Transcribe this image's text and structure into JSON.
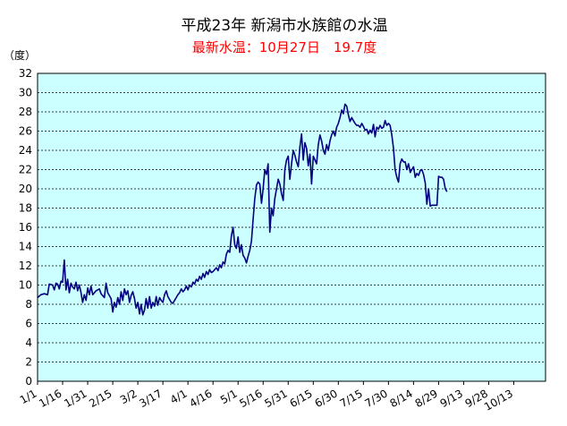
{
  "chart_data": {
    "type": "line",
    "title": "平成23年 新潟市水族館の水温",
    "subtitle": "最新水温：10月27日　19.7度",
    "ylabel": "（度）",
    "xlabel": "",
    "ylim": [
      0,
      32
    ],
    "yticks": [
      0,
      2,
      4,
      6,
      8,
      10,
      12,
      14,
      16,
      18,
      20,
      22,
      24,
      26,
      28,
      30,
      32
    ],
    "x_tick_labels": [
      "1/1",
      "1/16",
      "1/31",
      "2/15",
      "3/2",
      "3/17",
      "4/1",
      "4/16",
      "5/1",
      "5/16",
      "5/31",
      "6/15",
      "6/30",
      "7/15",
      "7/30",
      "8/14",
      "8/29",
      "9/13",
      "9/28",
      "10/13"
    ],
    "x_range_days": [
      0,
      304
    ],
    "grid": "horizontal",
    "colors": {
      "plot_background": "#ccffff",
      "line": "#000080",
      "title": "#000000",
      "subtitle": "#ff0000"
    },
    "series": [
      {
        "points": [
          [
            0,
            8.7
          ],
          [
            2,
            9.0
          ],
          [
            4,
            9.1
          ],
          [
            6,
            9.0
          ],
          [
            7,
            10.1
          ],
          [
            9,
            10.0
          ],
          [
            10,
            9.5
          ],
          [
            11,
            10.2
          ],
          [
            12,
            10.1
          ],
          [
            13,
            9.6
          ],
          [
            14,
            10.4
          ],
          [
            15,
            10.3
          ],
          [
            16,
            12.6
          ],
          [
            17,
            9.5
          ],
          [
            18,
            10.6
          ],
          [
            19,
            9.2
          ],
          [
            20,
            10.2
          ],
          [
            21,
            9.8
          ],
          [
            22,
            9.6
          ],
          [
            23,
            10.3
          ],
          [
            24,
            9.4
          ],
          [
            25,
            10.0
          ],
          [
            26,
            9.2
          ],
          [
            27,
            8.2
          ],
          [
            28,
            9.0
          ],
          [
            29,
            8.4
          ],
          [
            30,
            9.7
          ],
          [
            31,
            9.0
          ],
          [
            32,
            9.9
          ],
          [
            33,
            9.0
          ],
          [
            35,
            9.4
          ],
          [
            37,
            9.6
          ],
          [
            38,
            9.1
          ],
          [
            40,
            8.7
          ],
          [
            41,
            10.2
          ],
          [
            42,
            9.2
          ],
          [
            44,
            8.6
          ],
          [
            45,
            7.2
          ],
          [
            46,
            8.2
          ],
          [
            47,
            7.7
          ],
          [
            48,
            8.7
          ],
          [
            49,
            8.0
          ],
          [
            50,
            9.3
          ],
          [
            51,
            8.4
          ],
          [
            52,
            9.6
          ],
          [
            53,
            9.0
          ],
          [
            54,
            9.4
          ],
          [
            55,
            8.2
          ],
          [
            56,
            8.9
          ],
          [
            57,
            9.3
          ],
          [
            58,
            8.6
          ],
          [
            59,
            7.6
          ],
          [
            60,
            8.2
          ],
          [
            61,
            7.0
          ],
          [
            62,
            8.0
          ],
          [
            63,
            6.9
          ],
          [
            64,
            7.4
          ],
          [
            65,
            8.6
          ],
          [
            66,
            7.6
          ],
          [
            67,
            8.8
          ],
          [
            68,
            7.6
          ],
          [
            69,
            8.2
          ],
          [
            70,
            7.8
          ],
          [
            71,
            8.8
          ],
          [
            72,
            7.9
          ],
          [
            73,
            8.7
          ],
          [
            74,
            8.4
          ],
          [
            75,
            8.2
          ],
          [
            76,
            9.0
          ],
          [
            77,
            9.4
          ],
          [
            78,
            8.8
          ],
          [
            79,
            8.5
          ],
          [
            80,
            8.2
          ],
          [
            81,
            8.1
          ],
          [
            82,
            8.4
          ],
          [
            83,
            8.7
          ],
          [
            84,
            9.0
          ],
          [
            85,
            9.2
          ],
          [
            86,
            9.6
          ],
          [
            87,
            9.3
          ],
          [
            88,
            9.5
          ],
          [
            89,
            9.9
          ],
          [
            90,
            9.5
          ],
          [
            91,
            10.0
          ],
          [
            92,
            9.8
          ],
          [
            93,
            10.3
          ],
          [
            94,
            10.1
          ],
          [
            95,
            10.6
          ],
          [
            96,
            10.4
          ],
          [
            97,
            10.9
          ],
          [
            98,
            10.6
          ],
          [
            99,
            11.2
          ],
          [
            100,
            10.8
          ],
          [
            101,
            11.4
          ],
          [
            102,
            11.1
          ],
          [
            103,
            11.6
          ],
          [
            104,
            11.3
          ],
          [
            105,
            11.4
          ],
          [
            106,
            11.6
          ],
          [
            107,
            11.8
          ],
          [
            108,
            11.5
          ],
          [
            109,
            12.1
          ],
          [
            110,
            11.8
          ],
          [
            111,
            12.4
          ],
          [
            112,
            12.2
          ],
          [
            113,
            13.2
          ],
          [
            114,
            13.6
          ],
          [
            115,
            13.4
          ],
          [
            116,
            15.1
          ],
          [
            117,
            16.0
          ],
          [
            118,
            14.2
          ],
          [
            119,
            13.8
          ],
          [
            120,
            15.0
          ],
          [
            121,
            13.4
          ],
          [
            122,
            14.2
          ],
          [
            123,
            13.1
          ],
          [
            124,
            12.8
          ],
          [
            125,
            12.3
          ],
          [
            126,
            13.0
          ],
          [
            127,
            13.6
          ],
          [
            128,
            14.6
          ],
          [
            129,
            16.8
          ],
          [
            130,
            19.0
          ],
          [
            131,
            20.4
          ],
          [
            132,
            20.7
          ],
          [
            133,
            20.5
          ],
          [
            134,
            18.5
          ],
          [
            135,
            20.0
          ],
          [
            136,
            22.0
          ],
          [
            137,
            21.5
          ],
          [
            138,
            22.6
          ],
          [
            139,
            15.5
          ],
          [
            140,
            18.0
          ],
          [
            141,
            17.2
          ],
          [
            142,
            19.0
          ],
          [
            143,
            20.0
          ],
          [
            144,
            21.0
          ],
          [
            145,
            20.5
          ],
          [
            146,
            19.5
          ],
          [
            147,
            18.8
          ],
          [
            148,
            22.0
          ],
          [
            149,
            23.0
          ],
          [
            150,
            23.4
          ],
          [
            151,
            21.0
          ],
          [
            152,
            22.6
          ],
          [
            153,
            24.0
          ],
          [
            154,
            23.5
          ],
          [
            155,
            22.8
          ],
          [
            156,
            22.3
          ],
          [
            157,
            24.3
          ],
          [
            158,
            25.7
          ],
          [
            159,
            23.0
          ],
          [
            160,
            24.8
          ],
          [
            161,
            24.2
          ],
          [
            162,
            22.4
          ],
          [
            163,
            23.6
          ],
          [
            164,
            20.5
          ],
          [
            165,
            23.4
          ],
          [
            166,
            23.0
          ],
          [
            167,
            22.6
          ],
          [
            168,
            24.6
          ],
          [
            169,
            25.6
          ],
          [
            170,
            25.0
          ],
          [
            171,
            24.0
          ],
          [
            172,
            23.6
          ],
          [
            173,
            24.6
          ],
          [
            174,
            24.0
          ],
          [
            175,
            25.0
          ],
          [
            176,
            25.6
          ],
          [
            177,
            26.0
          ],
          [
            178,
            25.5
          ],
          [
            179,
            26.4
          ],
          [
            180,
            26.8
          ],
          [
            181,
            27.4
          ],
          [
            182,
            28.2
          ],
          [
            183,
            27.8
          ],
          [
            184,
            28.8
          ],
          [
            185,
            28.6
          ],
          [
            186,
            27.7
          ],
          [
            187,
            27.0
          ],
          [
            188,
            27.4
          ],
          [
            189,
            27.1
          ],
          [
            190,
            26.8
          ],
          [
            191,
            26.6
          ],
          [
            192,
            26.6
          ],
          [
            193,
            26.4
          ],
          [
            194,
            26.8
          ],
          [
            195,
            26.5
          ],
          [
            196,
            26.1
          ],
          [
            197,
            26.2
          ],
          [
            198,
            25.7
          ],
          [
            199,
            26.1
          ],
          [
            200,
            25.8
          ],
          [
            201,
            26.7
          ],
          [
            202,
            25.4
          ],
          [
            203,
            26.4
          ],
          [
            204,
            26.2
          ],
          [
            205,
            26.6
          ],
          [
            206,
            26.3
          ],
          [
            207,
            26.4
          ],
          [
            208,
            27.1
          ],
          [
            209,
            26.6
          ],
          [
            210,
            26.8
          ],
          [
            211,
            26.6
          ],
          [
            212,
            25.6
          ],
          [
            213,
            24.2
          ],
          [
            214,
            22.0
          ],
          [
            215,
            21.2
          ],
          [
            216,
            20.7
          ],
          [
            217,
            22.6
          ],
          [
            218,
            23.1
          ],
          [
            219,
            22.8
          ],
          [
            220,
            22.8
          ],
          [
            221,
            22.0
          ],
          [
            222,
            22.6
          ],
          [
            223,
            21.7
          ],
          [
            224,
            22.0
          ],
          [
            225,
            22.3
          ],
          [
            226,
            21.2
          ],
          [
            227,
            21.6
          ],
          [
            228,
            21.4
          ],
          [
            229,
            21.9
          ],
          [
            230,
            22.0
          ],
          [
            231,
            21.5
          ],
          [
            232,
            20.6
          ],
          [
            233,
            18.4
          ],
          [
            234,
            20.0
          ],
          [
            235,
            18.2
          ],
          [
            236,
            18.3
          ],
          [
            237,
            18.3
          ],
          [
            238,
            18.3
          ],
          [
            239,
            18.3
          ],
          [
            240,
            21.3
          ],
          [
            241,
            21.2
          ],
          [
            242,
            21.2
          ],
          [
            243,
            21.0
          ],
          [
            244,
            20.0
          ],
          [
            245,
            19.7
          ]
        ]
      }
    ]
  }
}
